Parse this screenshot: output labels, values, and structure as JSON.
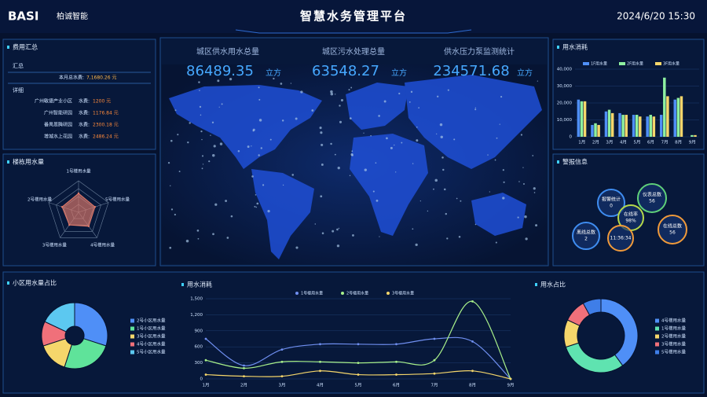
{
  "header": {
    "logo": "BASI",
    "brand": "柏诚智能",
    "title": "智慧水务管理平台",
    "datetime": "2024/6/20 15:30"
  },
  "cost_summary": {
    "title": "费用汇总",
    "summary_heading": "汇总",
    "total_label": "本月总水费:",
    "total_value": "7,1680.26 元",
    "detail_heading": "详细",
    "rows": [
      [
        "广州敏捷产业小区",
        "水费:",
        "1200 元"
      ],
      [
        "广州智能研园",
        "水费:",
        "1176.84 元"
      ],
      [
        "番禺恩腾研园",
        "水费:",
        "2300.18 元"
      ],
      [
        "增城水上花园",
        "水费:",
        "2486.24 元"
      ]
    ]
  },
  "stats": [
    {
      "label": "城区供水用水总量",
      "value": 86489.35,
      "unit": "立方"
    },
    {
      "label": "城区污水处理总量",
      "value": 63548.27,
      "unit": "立方"
    },
    {
      "label": "供水压力泵监测统计",
      "value": 234571.68,
      "unit": "立方"
    }
  ],
  "alarms": {
    "title": "警报信息",
    "bubbles": [
      {
        "label": "报警统计",
        "value": 0
      },
      {
        "label": "仪表总数",
        "value": 56
      },
      {
        "label": "在线率",
        "value": "98%"
      },
      {
        "label": "离线总数",
        "value": 2
      },
      {
        "label": "在线总数",
        "value": 56
      }
    ],
    "time": "11:36:34"
  },
  "chart_data": [
    {
      "type": "radar",
      "title": "楼栋用水量",
      "categories": [
        "1号楼用水量",
        "5号楼用水量",
        "4号楼用水量",
        "3号楼用水量",
        "2号楼用水量"
      ],
      "values": [
        60,
        55,
        55,
        50,
        55
      ],
      "rlim": [
        0,
        100
      ],
      "color": "#e07a6a"
    },
    {
      "type": "bar",
      "title": "用水消耗",
      "categories": [
        "1月",
        "2月",
        "3月",
        "4月",
        "5月",
        "6月",
        "7月",
        "8月",
        "9月"
      ],
      "series": [
        {
          "name": "1F用水量",
          "color": "#4f8ff7",
          "values": [
            22000,
            7000,
            15000,
            14000,
            13000,
            12000,
            13000,
            22000,
            0
          ]
        },
        {
          "name": "2F用水量",
          "color": "#8ef0a0",
          "values": [
            21000,
            8000,
            16000,
            13000,
            13000,
            13000,
            35000,
            23000,
            1000
          ]
        },
        {
          "name": "3F用水量",
          "color": "#f5d66b",
          "values": [
            21000,
            7000,
            14000,
            13000,
            12000,
            12000,
            24000,
            24000,
            1000
          ]
        }
      ],
      "ylim": [
        0,
        40000
      ],
      "yticks": [
        0,
        {
          "value": 10000,
          "label": "10,000"
        },
        {
          "value": 20000,
          "label": "20,000"
        },
        {
          "value": 30000,
          "label": "30,000"
        },
        {
          "value": 40000,
          "label": "40,000"
        }
      ],
      "grid": true
    },
    {
      "type": "pie",
      "title": "小区用水量占比",
      "categories": [
        "2号小区用水量",
        "1号小区用水量",
        "3号小区用水量",
        "4号小区用水量",
        "5号小区用水量"
      ],
      "values": [
        30,
        25,
        15,
        12,
        18
      ],
      "colors": [
        "#4f8ff7",
        "#5fe39a",
        "#f5d66b",
        "#f0707a",
        "#5cc8f0"
      ]
    },
    {
      "type": "line",
      "title": "用水消耗",
      "categories": [
        "1月",
        "2月",
        "3月",
        "4月",
        "5月",
        "6月",
        "7月",
        "8月",
        "9月"
      ],
      "series": [
        {
          "name": "1号楼用水量",
          "color": "#6f8ff0",
          "values": [
            750,
            250,
            550,
            650,
            650,
            650,
            750,
            700,
            0
          ]
        },
        {
          "name": "2号楼用水量",
          "color": "#a8f08a",
          "values": [
            350,
            200,
            320,
            320,
            300,
            320,
            350,
            1450,
            0
          ]
        },
        {
          "name": "3号楼用水量",
          "color": "#f5d66b",
          "values": [
            80,
            50,
            50,
            150,
            80,
            80,
            100,
            150,
            0
          ]
        }
      ],
      "ylim": [
        0,
        1500
      ],
      "yticks": [
        0,
        300,
        600,
        900,
        {
          "value": 1200,
          "label": "1,200"
        },
        {
          "value": 1500,
          "label": "1,500"
        }
      ],
      "grid": true
    },
    {
      "type": "donut",
      "title": "用水占比",
      "categories": [
        "4号楼用水量",
        "1号楼用水量",
        "2号楼用水量",
        "3号楼用水量",
        "5号楼用水量"
      ],
      "values": [
        40,
        30,
        12,
        10,
        8
      ],
      "colors": [
        "#4f8ff7",
        "#5fe3b0",
        "#f5d66b",
        "#f0707a",
        "#3f7ee8"
      ]
    }
  ]
}
